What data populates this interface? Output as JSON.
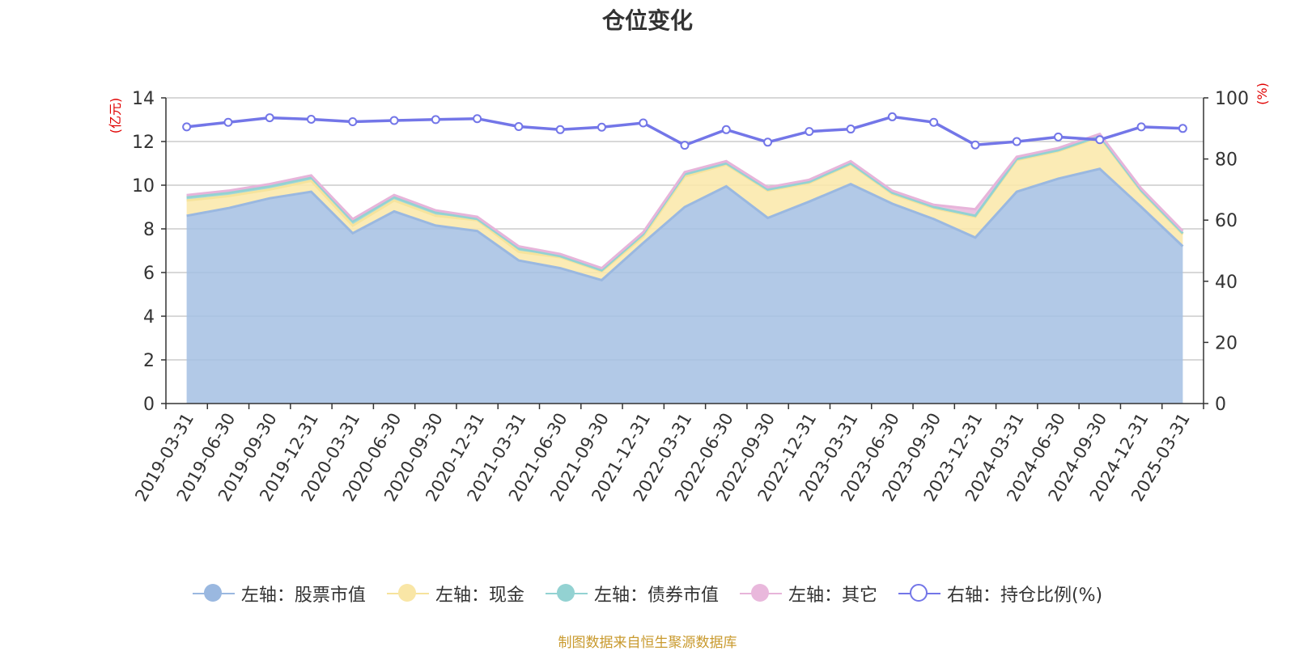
{
  "title": "仓位变化",
  "source_note": "制图数据来自恒生聚源数据库",
  "chart_data": {
    "type": "area",
    "categories": [
      "2019-03-31",
      "2019-06-30",
      "2019-09-30",
      "2019-12-31",
      "2020-03-31",
      "2020-06-30",
      "2020-09-30",
      "2020-12-31",
      "2021-03-31",
      "2021-06-30",
      "2021-09-30",
      "2021-12-31",
      "2022-03-31",
      "2022-06-30",
      "2022-09-30",
      "2022-12-31",
      "2023-03-31",
      "2023-06-30",
      "2023-09-30",
      "2023-12-31",
      "2024-03-31",
      "2024-06-30",
      "2024-09-30",
      "2024-12-31",
      "2025-03-31"
    ],
    "left_axis": {
      "label": "(亿元)",
      "ylim": [
        0,
        14
      ],
      "ticks": [
        "0",
        "2",
        "4",
        "6",
        "8",
        "10",
        "12",
        "14"
      ]
    },
    "right_axis": {
      "label": "(%)",
      "ylim": [
        0,
        100
      ],
      "ticks": [
        "0",
        "20",
        "40",
        "60",
        "80",
        "100"
      ]
    },
    "grid": true,
    "legend_position": "bottom",
    "series": [
      {
        "name": "左轴：股票市值",
        "axis": "left",
        "color": "#a5bfe3",
        "line_color": "#9ab8e0",
        "values": [
          8.6,
          8.95,
          9.4,
          9.7,
          7.8,
          8.8,
          8.15,
          7.9,
          6.55,
          6.2,
          5.65,
          7.35,
          9.0,
          9.95,
          8.5,
          9.25,
          10.05,
          9.15,
          8.45,
          7.6,
          9.7,
          10.3,
          10.75,
          9.0,
          7.2
        ]
      },
      {
        "name": "左轴：现金",
        "axis": "left",
        "color": "#fae8a8",
        "line_color": "#f6e39c",
        "values": [
          0.7,
          0.55,
          0.4,
          0.5,
          0.35,
          0.5,
          0.45,
          0.5,
          0.4,
          0.5,
          0.4,
          0.3,
          1.4,
          1.0,
          1.25,
          0.85,
          0.9,
          0.45,
          0.5,
          0.95,
          1.45,
          1.25,
          1.45,
          0.7,
          0.55
        ]
      },
      {
        "name": "左轴：债券市值",
        "axis": "left",
        "color": "#93d2d2",
        "line_color": "#93d2d2",
        "values": [
          0.15,
          0.15,
          0.15,
          0.15,
          0.2,
          0.15,
          0.15,
          0.05,
          0.15,
          0.05,
          0.05,
          0.1,
          0.1,
          0.05,
          0.05,
          0.05,
          0.05,
          0.05,
          0.05,
          0.05,
          0.05,
          0.05,
          0.05,
          0.05,
          0.05
        ]
      },
      {
        "name": "左轴：其它",
        "axis": "left",
        "color": "#e9b8dc",
        "line_color": "#e7b4da",
        "values": [
          0.1,
          0.1,
          0.1,
          0.1,
          0.1,
          0.1,
          0.1,
          0.1,
          0.1,
          0.1,
          0.1,
          0.1,
          0.1,
          0.1,
          0.1,
          0.1,
          0.1,
          0.1,
          0.1,
          0.3,
          0.1,
          0.1,
          0.1,
          0.1,
          0.1
        ]
      },
      {
        "name": "右轴：持仓比例(%)",
        "axis": "right",
        "color": "#7376e8",
        "line_color": "#7376e8",
        "values": [
          90.5,
          92,
          93.5,
          93,
          92.2,
          92.6,
          92.9,
          93.2,
          90.6,
          89.6,
          90.4,
          91.8,
          84.5,
          89.6,
          85.5,
          89,
          89.8,
          93.8,
          92,
          84.6,
          85.7,
          87.2,
          86.3,
          90.5,
          90
        ]
      }
    ]
  }
}
